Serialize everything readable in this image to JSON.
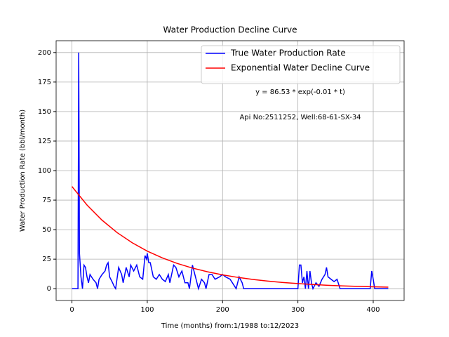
{
  "chart_data": {
    "type": "line",
    "title": "Water Production Decline Curve",
    "xlabel": "Time (months) from:1/1988 to:12/2023",
    "ylabel": "Water Production Rate (bbl/month)",
    "annotations": [
      "y = 86.53 * exp(-0.01 * t)",
      "Api No:2511252, Well:68-61-SX-34"
    ],
    "xlim": [
      -21,
      441
    ],
    "xticks": [
      0,
      100,
      200,
      300,
      400
    ],
    "ylim": [
      -10,
      210
    ],
    "yticks": [
      0,
      25,
      50,
      75,
      100,
      125,
      150,
      175,
      200
    ],
    "grid": true,
    "legend": "upper right",
    "series": [
      {
        "name": "True Water Production Rate",
        "color": "#0000ff",
        "x": [
          0,
          8,
          9,
          10,
          12,
          14,
          16,
          18,
          20,
          22,
          24,
          28,
          32,
          34,
          36,
          40,
          44,
          46,
          48,
          50,
          54,
          56,
          58,
          62,
          66,
          68,
          72,
          76,
          78,
          82,
          86,
          90,
          94,
          97,
          99,
          100,
          102,
          104,
          108,
          112,
          116,
          120,
          124,
          128,
          130,
          135,
          138,
          142,
          146,
          150,
          154,
          156,
          160,
          164,
          168,
          172,
          176,
          178,
          182,
          186,
          190,
          196,
          200,
          204,
          210,
          214,
          218,
          222,
          226,
          228,
          300,
          302,
          304,
          306,
          308,
          310,
          312,
          314,
          316,
          318,
          320,
          324,
          328,
          332,
          336,
          338,
          340,
          344,
          348,
          352,
          356,
          396,
          398,
          400,
          402,
          420
        ],
        "values": [
          0,
          0,
          200,
          30,
          10,
          0,
          20,
          18,
          10,
          5,
          12,
          8,
          5,
          0,
          8,
          12,
          15,
          20,
          22,
          10,
          5,
          2,
          0,
          18,
          12,
          5,
          18,
          10,
          20,
          15,
          20,
          10,
          8,
          28,
          25,
          30,
          22,
          22,
          10,
          8,
          12,
          8,
          6,
          12,
          5,
          20,
          18,
          10,
          15,
          5,
          5,
          0,
          20,
          10,
          0,
          8,
          5,
          0,
          12,
          12,
          8,
          10,
          12,
          10,
          8,
          4,
          0,
          10,
          5,
          0,
          0,
          20,
          20,
          5,
          10,
          0,
          15,
          0,
          15,
          5,
          0,
          5,
          2,
          8,
          12,
          18,
          10,
          8,
          6,
          8,
          0,
          0,
          15,
          8,
          0,
          0
        ]
      },
      {
        "name": "Exponential Water Decline Curve",
        "color": "#ff0000",
        "x": [
          0,
          20,
          40,
          60,
          80,
          100,
          120,
          140,
          160,
          180,
          200,
          220,
          240,
          260,
          280,
          300,
          320,
          340,
          360,
          380,
          400,
          420
        ],
        "values": [
          86.53,
          70.85,
          58.0,
          47.49,
          38.88,
          31.83,
          26.06,
          21.34,
          17.47,
          14.3,
          11.71,
          9.59,
          7.85,
          6.43,
          5.26,
          4.31,
          3.53,
          2.89,
          2.36,
          1.94,
          1.58,
          1.3
        ]
      }
    ]
  }
}
